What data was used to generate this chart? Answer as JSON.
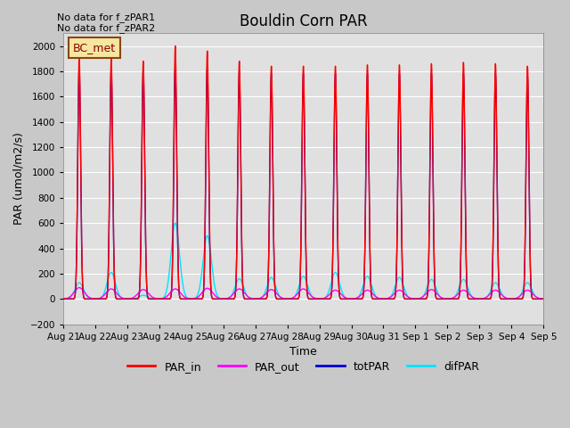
{
  "title": "Bouldin Corn PAR",
  "ylabel": "PAR (umol/m2/s)",
  "xlabel": "Time",
  "ylim": [
    -200,
    2100
  ],
  "yticks": [
    -200,
    0,
    200,
    400,
    600,
    800,
    1000,
    1200,
    1400,
    1600,
    1800,
    2000
  ],
  "fig_bg_color": "#c8c8c8",
  "plot_bg_color": "#e0e0e0",
  "colors": {
    "PAR_in": "#ff0000",
    "PAR_out": "#ff00ff",
    "totPAR": "#0000dd",
    "difPAR": "#00e5ff"
  },
  "legend_label": "BC_met",
  "no_data_text": [
    "No data for f_zPAR1",
    "No data for f_zPAR2"
  ],
  "x_tick_labels": [
    "Aug 21",
    "Aug 22",
    "Aug 23",
    "Aug 24",
    "Aug 25",
    "Aug 26",
    "Aug 27",
    "Aug 28",
    "Aug 29",
    "Aug 30",
    "Aug 31",
    "Sep 1",
    "Sep 2",
    "Sep 3",
    "Sep 4",
    "Sep 5"
  ],
  "n_days": 15,
  "day_peak_PAR_in": [
    1910,
    1900,
    1880,
    2000,
    1960,
    1880,
    1840,
    1840,
    1840,
    1850,
    1850,
    1860,
    1870,
    1860,
    1840
  ],
  "day_peak_tot": [
    1820,
    1820,
    1810,
    1830,
    1830,
    1800,
    1780,
    1780,
    1780,
    1780,
    1780,
    1780,
    1780,
    1780,
    1760
  ],
  "day_peak_out": [
    90,
    80,
    75,
    80,
    85,
    80,
    75,
    80,
    70,
    70,
    70,
    75,
    70,
    70,
    70
  ],
  "day_peak_dif": [
    130,
    210,
    30,
    600,
    500,
    160,
    170,
    180,
    210,
    180,
    170,
    155,
    155,
    130,
    130
  ],
  "sigma_in": 0.045,
  "sigma_tot": 0.045,
  "sigma_out": 0.16,
  "sigma_dif": 0.13,
  "pts_per_day": 200
}
